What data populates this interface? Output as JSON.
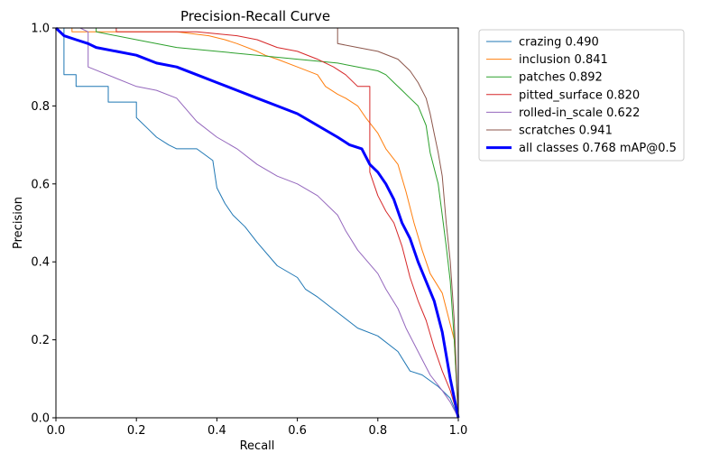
{
  "chart_data": {
    "type": "line",
    "title": "Precision-Recall Curve",
    "xlabel": "Recall",
    "ylabel": "Precision",
    "xlim": [
      0,
      1
    ],
    "ylim": [
      0,
      1
    ],
    "x_ticks": [
      "0.0",
      "0.2",
      "0.4",
      "0.6",
      "0.8",
      "1.0"
    ],
    "y_ticks": [
      "0.0",
      "0.2",
      "0.4",
      "0.6",
      "0.8",
      "1.0"
    ],
    "grid": false,
    "legend_position": "outside-right-top",
    "series": [
      {
        "name": "crazing 0.490",
        "color": "#1f77b4",
        "width": 1,
        "x": [
          0,
          0.02,
          0.02,
          0.05,
          0.05,
          0.13,
          0.13,
          0.2,
          0.2,
          0.23,
          0.25,
          0.28,
          0.3,
          0.35,
          0.39,
          0.4,
          0.42,
          0.44,
          0.47,
          0.5,
          0.55,
          0.6,
          0.62,
          0.65,
          0.7,
          0.75,
          0.8,
          0.85,
          0.88,
          0.91,
          0.95,
          0.98,
          1.0
        ],
        "y": [
          1.0,
          1.0,
          0.88,
          0.88,
          0.85,
          0.85,
          0.81,
          0.81,
          0.77,
          0.74,
          0.72,
          0.7,
          0.69,
          0.69,
          0.66,
          0.59,
          0.55,
          0.52,
          0.49,
          0.45,
          0.39,
          0.36,
          0.33,
          0.31,
          0.27,
          0.23,
          0.21,
          0.17,
          0.12,
          0.11,
          0.08,
          0.05,
          0.0
        ]
      },
      {
        "name": "inclusion 0.841",
        "color": "#ff7f0e",
        "width": 1,
        "x": [
          0,
          0.04,
          0.04,
          0.3,
          0.38,
          0.42,
          0.45,
          0.5,
          0.52,
          0.55,
          0.6,
          0.65,
          0.67,
          0.7,
          0.72,
          0.75,
          0.77,
          0.8,
          0.82,
          0.85,
          0.87,
          0.89,
          0.91,
          0.93,
          0.96,
          0.99,
          1.0
        ],
        "y": [
          1.0,
          1.0,
          0.99,
          0.99,
          0.98,
          0.97,
          0.96,
          0.94,
          0.93,
          0.92,
          0.9,
          0.88,
          0.85,
          0.83,
          0.82,
          0.8,
          0.77,
          0.73,
          0.69,
          0.65,
          0.58,
          0.5,
          0.43,
          0.37,
          0.32,
          0.2,
          0.0
        ]
      },
      {
        "name": "patches 0.892",
        "color": "#2ca02c",
        "width": 1,
        "x": [
          0,
          0.1,
          0.1,
          0.2,
          0.3,
          0.4,
          0.5,
          0.6,
          0.7,
          0.75,
          0.8,
          0.82,
          0.84,
          0.86,
          0.88,
          0.9,
          0.92,
          0.93,
          0.95,
          0.96,
          0.97,
          0.98,
          0.99,
          1.0
        ],
        "y": [
          1.0,
          1.0,
          0.99,
          0.97,
          0.95,
          0.94,
          0.93,
          0.92,
          0.91,
          0.9,
          0.89,
          0.88,
          0.86,
          0.84,
          0.82,
          0.8,
          0.75,
          0.68,
          0.6,
          0.52,
          0.44,
          0.35,
          0.2,
          0.0
        ]
      },
      {
        "name": "pitted_surface 0.820",
        "color": "#d62728",
        "width": 1,
        "x": [
          0,
          0.15,
          0.15,
          0.35,
          0.45,
          0.5,
          0.55,
          0.6,
          0.65,
          0.69,
          0.72,
          0.75,
          0.78,
          0.78,
          0.8,
          0.82,
          0.84,
          0.86,
          0.88,
          0.9,
          0.92,
          0.94,
          0.96,
          0.98,
          1.0
        ],
        "y": [
          1.0,
          1.0,
          0.99,
          0.99,
          0.98,
          0.97,
          0.95,
          0.94,
          0.92,
          0.9,
          0.88,
          0.85,
          0.85,
          0.63,
          0.57,
          0.53,
          0.5,
          0.44,
          0.36,
          0.3,
          0.25,
          0.18,
          0.12,
          0.07,
          0.0
        ]
      },
      {
        "name": "rolled-in_scale 0.622",
        "color": "#9467bd",
        "width": 1,
        "x": [
          0,
          0.06,
          0.08,
          0.08,
          0.2,
          0.25,
          0.3,
          0.35,
          0.4,
          0.45,
          0.5,
          0.55,
          0.6,
          0.65,
          0.7,
          0.72,
          0.75,
          0.8,
          0.82,
          0.85,
          0.87,
          0.9,
          0.93,
          0.96,
          0.98,
          1.0
        ],
        "y": [
          1.0,
          1.0,
          0.99,
          0.9,
          0.85,
          0.84,
          0.82,
          0.76,
          0.72,
          0.69,
          0.65,
          0.62,
          0.6,
          0.57,
          0.52,
          0.48,
          0.43,
          0.37,
          0.33,
          0.28,
          0.23,
          0.17,
          0.11,
          0.07,
          0.04,
          0.0
        ]
      },
      {
        "name": "scratches 0.941",
        "color": "#8c564b",
        "width": 1,
        "x": [
          0,
          0.7,
          0.7,
          0.75,
          0.8,
          0.85,
          0.88,
          0.9,
          0.92,
          0.93,
          0.94,
          0.95,
          0.96,
          0.97,
          0.98,
          0.99,
          1.0
        ],
        "y": [
          1.0,
          1.0,
          0.96,
          0.95,
          0.94,
          0.92,
          0.89,
          0.86,
          0.82,
          0.78,
          0.73,
          0.68,
          0.62,
          0.5,
          0.4,
          0.25,
          0.0
        ]
      },
      {
        "name": "all classes 0.768 mAP@0.5",
        "color": "#0000ff",
        "width": 3,
        "x": [
          0,
          0.02,
          0.05,
          0.08,
          0.1,
          0.15,
          0.2,
          0.25,
          0.3,
          0.35,
          0.4,
          0.45,
          0.5,
          0.55,
          0.6,
          0.65,
          0.7,
          0.73,
          0.76,
          0.78,
          0.8,
          0.82,
          0.84,
          0.86,
          0.88,
          0.9,
          0.92,
          0.94,
          0.96,
          0.98,
          1.0
        ],
        "y": [
          1.0,
          0.98,
          0.97,
          0.96,
          0.95,
          0.94,
          0.93,
          0.91,
          0.9,
          0.88,
          0.86,
          0.84,
          0.82,
          0.8,
          0.78,
          0.75,
          0.72,
          0.7,
          0.69,
          0.65,
          0.63,
          0.6,
          0.56,
          0.5,
          0.46,
          0.4,
          0.35,
          0.3,
          0.22,
          0.1,
          0.0
        ]
      }
    ]
  }
}
